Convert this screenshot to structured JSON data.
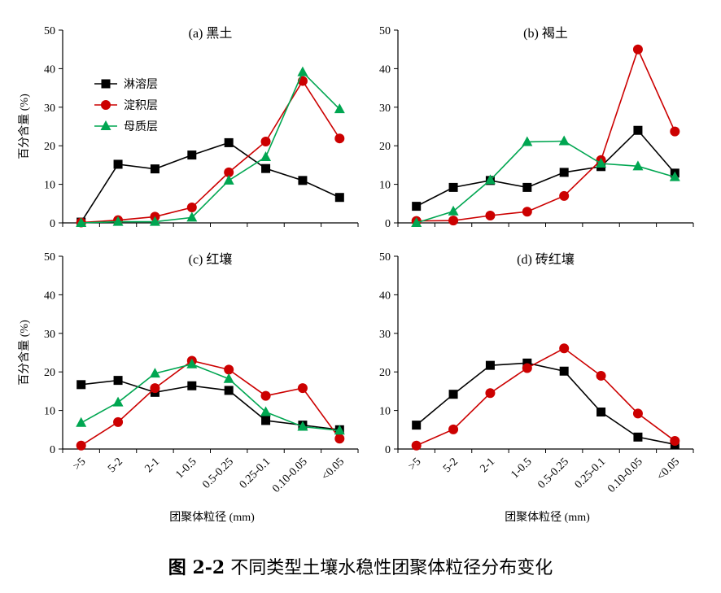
{
  "caption": {
    "prefix": "图 2-2",
    "text": " 不同类型土壤水稳性团聚体粒径分布变化"
  },
  "colors": {
    "leaching": "#000000",
    "deposition": "#cc0000",
    "parent": "#00a651"
  },
  "chart_data": [
    {
      "type": "line",
      "title": "(a) 黑土",
      "ylabel": "百分含量 (%)",
      "xlabel": "",
      "ylim": [
        0,
        50
      ],
      "yticks": [
        0,
        10,
        20,
        30,
        40,
        50
      ],
      "categories": [
        ">5",
        "5-2",
        "2-1",
        "1-0.5",
        "0.5-0.25",
        "0.25-0.1",
        "0.10-0.05",
        "<0.05"
      ],
      "show_xticklabels": false,
      "legend": "top-left",
      "series": [
        {
          "name": "淋溶层",
          "color": "#000000",
          "marker": "square",
          "values": [
            0.2,
            15.2,
            14.0,
            17.6,
            20.8,
            14.1,
            11.0,
            6.6
          ]
        },
        {
          "name": "淀积层",
          "color": "#cc0000",
          "marker": "circle",
          "values": [
            0.1,
            0.7,
            1.6,
            4.0,
            13.1,
            21.1,
            36.8,
            21.9
          ]
        },
        {
          "name": "母质层",
          "color": "#00a651",
          "marker": "triangle",
          "values": [
            0.0,
            0.3,
            0.3,
            1.4,
            11.0,
            17.1,
            39.1,
            29.5
          ]
        }
      ]
    },
    {
      "type": "line",
      "title": "(b) 褐土",
      "ylabel": "",
      "xlabel": "",
      "ylim": [
        0,
        50
      ],
      "yticks": [
        0,
        10,
        20,
        30,
        40,
        50
      ],
      "categories": [
        ">5",
        "5-2",
        "2-1",
        "1-0.5",
        "0.5-0.25",
        "0.25-0.1",
        "0.10-0.05",
        "<0.05"
      ],
      "show_xticklabels": false,
      "series": [
        {
          "name": "淋溶层",
          "color": "#000000",
          "marker": "square",
          "values": [
            4.3,
            9.2,
            11.0,
            9.2,
            13.1,
            14.6,
            24.0,
            12.9
          ]
        },
        {
          "name": "淀积层",
          "color": "#cc0000",
          "marker": "circle",
          "values": [
            0.5,
            0.6,
            1.9,
            2.9,
            7.0,
            16.3,
            45.0,
            23.7
          ]
        },
        {
          "name": "母质层",
          "color": "#00a651",
          "marker": "triangle",
          "values": [
            0.0,
            3.0,
            11.1,
            21.0,
            21.2,
            15.4,
            14.7,
            11.9
          ]
        }
      ]
    },
    {
      "type": "line",
      "title": "(c) 红壤",
      "ylabel": "百分含量 (%)",
      "xlabel": "团聚体粒径 (mm)",
      "ylim": [
        0,
        50
      ],
      "yticks": [
        0,
        10,
        20,
        30,
        40,
        50
      ],
      "categories": [
        ">5",
        "5-2",
        "2-1",
        "1-0.5",
        "0.5-0.25",
        "0.25-0.1",
        "0.10-0.05",
        "<0.05"
      ],
      "show_xticklabels": true,
      "series": [
        {
          "name": "淋溶层",
          "color": "#000000",
          "marker": "square",
          "values": [
            16.7,
            17.8,
            14.7,
            16.4,
            15.2,
            7.4,
            6.2,
            5.0
          ]
        },
        {
          "name": "淀积层",
          "color": "#cc0000",
          "marker": "circle",
          "values": [
            0.9,
            7.0,
            15.8,
            22.9,
            20.6,
            13.8,
            15.8,
            2.7
          ]
        },
        {
          "name": "母质层",
          "color": "#00a651",
          "marker": "triangle",
          "values": [
            6.8,
            12.1,
            19.6,
            22.0,
            18.2,
            9.6,
            5.8,
            4.8
          ]
        }
      ]
    },
    {
      "type": "line",
      "title": "(d) 砖红壤",
      "ylabel": "",
      "xlabel": "团聚体粒径 (mm)",
      "ylim": [
        0,
        50
      ],
      "yticks": [
        0,
        10,
        20,
        30,
        40,
        50
      ],
      "categories": [
        ">5",
        "5-2",
        "2-1",
        "1-0.5",
        "0.5-0.25",
        "0.25-0.1",
        "0.10-0.05",
        "<0.05"
      ],
      "show_xticklabels": true,
      "series": [
        {
          "name": "淋溶层",
          "color": "#000000",
          "marker": "square",
          "values": [
            6.2,
            14.2,
            21.7,
            22.3,
            20.2,
            9.6,
            3.1,
            1.2
          ]
        },
        {
          "name": "淀积层",
          "color": "#cc0000",
          "marker": "circle",
          "values": [
            0.9,
            5.1,
            14.5,
            21.0,
            26.1,
            19.0,
            9.2,
            2.1
          ]
        }
      ]
    }
  ]
}
